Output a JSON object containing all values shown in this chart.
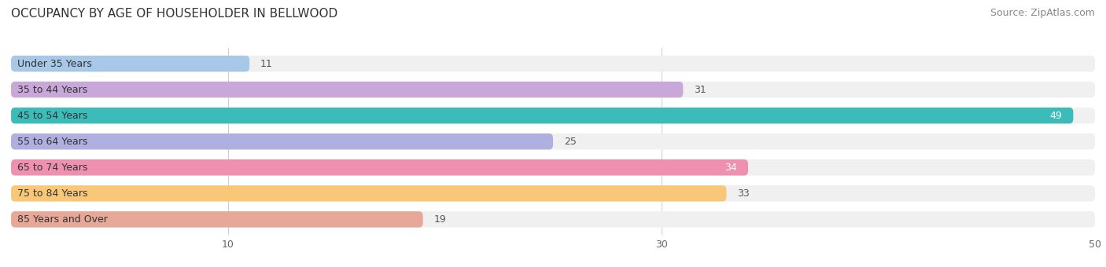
{
  "title": "OCCUPANCY BY AGE OF HOUSEHOLDER IN BELLWOOD",
  "source": "Source: ZipAtlas.com",
  "categories": [
    "Under 35 Years",
    "35 to 44 Years",
    "45 to 54 Years",
    "55 to 64 Years",
    "65 to 74 Years",
    "75 to 84 Years",
    "85 Years and Over"
  ],
  "values": [
    11,
    31,
    49,
    25,
    34,
    33,
    19
  ],
  "bar_colors": [
    "#a8c8e8",
    "#c8a8d8",
    "#3bbcb8",
    "#b0b0e0",
    "#f090b0",
    "#f8c878",
    "#e8a898"
  ],
  "bar_bg_color": "#f0f0f0",
  "label_color_inside": "#ffffff",
  "label_color_outside": "#666666",
  "xlim": [
    0,
    50
  ],
  "xticks": [
    10,
    30,
    50
  ],
  "title_fontsize": 11,
  "source_fontsize": 9,
  "label_fontsize": 9,
  "category_fontsize": 9,
  "bar_height": 0.62,
  "background_color": "#ffffff",
  "inside_label_threshold": 34
}
